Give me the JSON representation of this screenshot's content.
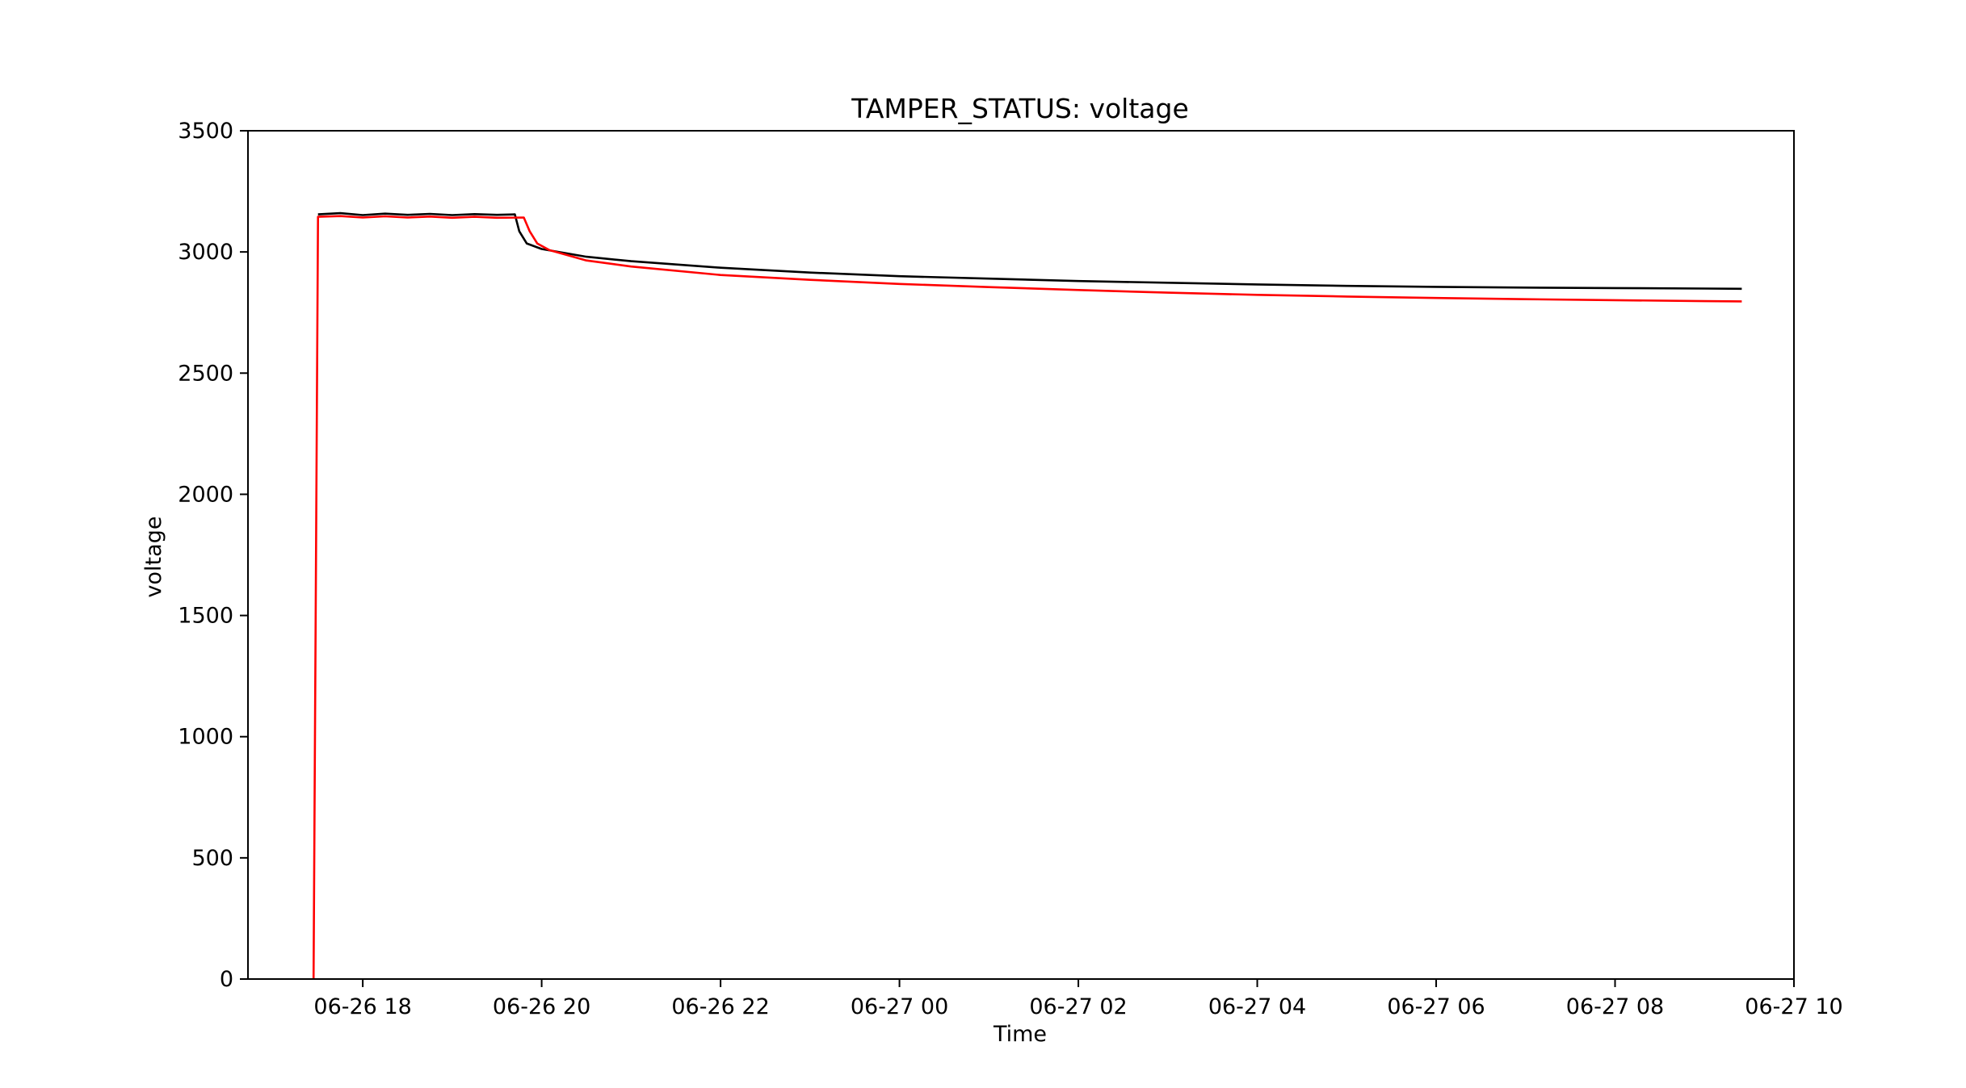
{
  "chart_data": {
    "type": "line",
    "title": "TAMPER_STATUS: voltage",
    "xlabel": "Time",
    "ylabel": "voltage",
    "ylim": [
      0,
      3500
    ],
    "xlim": [
      "2023-06-26 16:43",
      "2023-06-27 10:00"
    ],
    "x_ticks": [
      {
        "value": "2023-06-26 18:00",
        "label": "06-26 18"
      },
      {
        "value": "2023-06-26 20:00",
        "label": "06-26 20"
      },
      {
        "value": "2023-06-26 22:00",
        "label": "06-26 22"
      },
      {
        "value": "2023-06-27 00:00",
        "label": "06-27 00"
      },
      {
        "value": "2023-06-27 02:00",
        "label": "06-27 02"
      },
      {
        "value": "2023-06-27 04:00",
        "label": "06-27 04"
      },
      {
        "value": "2023-06-27 06:00",
        "label": "06-27 06"
      },
      {
        "value": "2023-06-27 08:00",
        "label": "06-27 08"
      },
      {
        "value": "2023-06-27 10:00",
        "label": "06-27 10"
      }
    ],
    "y_ticks": [
      0,
      500,
      1000,
      1500,
      2000,
      2500,
      3000,
      3500
    ],
    "grid": false,
    "legend": "none",
    "series": [
      {
        "color": "#000000",
        "points": [
          [
            "2023-06-26 17:30",
            3155
          ],
          [
            "2023-06-26 17:45",
            3160
          ],
          [
            "2023-06-26 18:00",
            3152
          ],
          [
            "2023-06-26 18:15",
            3158
          ],
          [
            "2023-06-26 18:30",
            3153
          ],
          [
            "2023-06-26 18:45",
            3157
          ],
          [
            "2023-06-26 19:00",
            3152
          ],
          [
            "2023-06-26 19:15",
            3156
          ],
          [
            "2023-06-26 19:30",
            3153
          ],
          [
            "2023-06-26 19:42",
            3155
          ],
          [
            "2023-06-26 19:45",
            3085
          ],
          [
            "2023-06-26 19:50",
            3035
          ],
          [
            "2023-06-26 20:00",
            3012
          ],
          [
            "2023-06-26 20:30",
            2980
          ],
          [
            "2023-06-26 21:00",
            2962
          ],
          [
            "2023-06-26 22:00",
            2935
          ],
          [
            "2023-06-26 23:00",
            2915
          ],
          [
            "2023-06-27 00:00",
            2900
          ],
          [
            "2023-06-27 01:00",
            2890
          ],
          [
            "2023-06-27 02:00",
            2880
          ],
          [
            "2023-06-27 03:00",
            2873
          ],
          [
            "2023-06-27 04:00",
            2866
          ],
          [
            "2023-06-27 05:00",
            2860
          ],
          [
            "2023-06-27 06:00",
            2856
          ],
          [
            "2023-06-27 07:00",
            2853
          ],
          [
            "2023-06-27 08:00",
            2851
          ],
          [
            "2023-06-27 09:00",
            2849
          ],
          [
            "2023-06-27 09:25",
            2848
          ]
        ]
      },
      {
        "color": "#ff0000",
        "points": [
          [
            "2023-06-26 17:27",
            0
          ],
          [
            "2023-06-26 17:30",
            3145
          ],
          [
            "2023-06-26 17:45",
            3148
          ],
          [
            "2023-06-26 18:00",
            3142
          ],
          [
            "2023-06-26 18:15",
            3147
          ],
          [
            "2023-06-26 18:30",
            3142
          ],
          [
            "2023-06-26 18:45",
            3146
          ],
          [
            "2023-06-26 19:00",
            3141
          ],
          [
            "2023-06-26 19:15",
            3145
          ],
          [
            "2023-06-26 19:30",
            3141
          ],
          [
            "2023-06-26 19:48",
            3142
          ],
          [
            "2023-06-26 19:52",
            3085
          ],
          [
            "2023-06-26 19:57",
            3035
          ],
          [
            "2023-06-26 20:05",
            3008
          ],
          [
            "2023-06-26 20:30",
            2965
          ],
          [
            "2023-06-26 21:00",
            2940
          ],
          [
            "2023-06-26 22:00",
            2905
          ],
          [
            "2023-06-26 23:00",
            2885
          ],
          [
            "2023-06-27 00:00",
            2868
          ],
          [
            "2023-06-27 01:00",
            2855
          ],
          [
            "2023-06-27 02:00",
            2843
          ],
          [
            "2023-06-27 03:00",
            2832
          ],
          [
            "2023-06-27 04:00",
            2823
          ],
          [
            "2023-06-27 05:00",
            2816
          ],
          [
            "2023-06-27 06:00",
            2810
          ],
          [
            "2023-06-27 07:00",
            2805
          ],
          [
            "2023-06-27 08:00",
            2801
          ],
          [
            "2023-06-27 09:00",
            2797
          ],
          [
            "2023-06-27 09:25",
            2796
          ]
        ]
      }
    ]
  }
}
